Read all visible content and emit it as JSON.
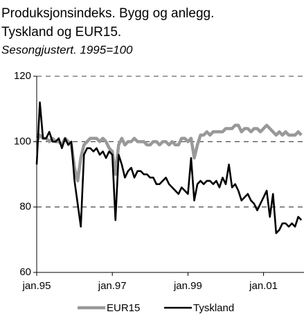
{
  "chart_data": {
    "type": "line",
    "title": [
      "Produksjonsindeks. Bygg og anlegg.",
      "Tyskland og EUR15."
    ],
    "subtitle": "Sesongjustert. 1995=100",
    "categories": [
      "jan.95",
      null,
      null,
      null,
      null,
      null,
      null,
      null,
      null,
      null,
      null,
      null,
      null,
      null,
      null,
      null,
      null,
      null,
      null,
      null,
      null,
      null,
      null,
      null,
      "jan.97",
      null,
      null,
      null,
      null,
      null,
      null,
      null,
      null,
      null,
      null,
      null,
      null,
      null,
      null,
      null,
      null,
      null,
      null,
      null,
      null,
      null,
      null,
      null,
      "jan.99",
      null,
      null,
      null,
      null,
      null,
      null,
      null,
      null,
      null,
      null,
      null,
      null,
      null,
      null,
      null,
      null,
      null,
      null,
      null,
      null,
      null,
      null,
      null,
      "jan.01",
      null,
      null,
      null,
      null,
      null,
      null,
      null,
      null,
      null,
      null,
      null,
      null
    ],
    "series": [
      {
        "name": "EUR15",
        "color": "#999999",
        "values": [
          100,
          102,
          101,
          101,
          100,
          101,
          100,
          100,
          99,
          101,
          100,
          99,
          92,
          88,
          95,
          99,
          100,
          101,
          101,
          101,
          100,
          101,
          100,
          98,
          97,
          90,
          99,
          101,
          99,
          100,
          100,
          101,
          100,
          100,
          100,
          99,
          99,
          100,
          100,
          99,
          100,
          100,
          99,
          100,
          99,
          99,
          101,
          101,
          100,
          101,
          95,
          99,
          102,
          102,
          103,
          102,
          103,
          103,
          103,
          103,
          104,
          104,
          104,
          105,
          105,
          103,
          104,
          104,
          103,
          104,
          104,
          103,
          104,
          105,
          104,
          103,
          102,
          103,
          102,
          103,
          102,
          102,
          102,
          103,
          102
        ]
      },
      {
        "name": "Tyskland",
        "color": "#000000",
        "values": [
          93,
          112,
          101,
          101,
          103,
          100,
          100,
          101,
          98,
          101,
          99,
          100,
          88,
          81,
          74,
          96,
          98,
          98,
          97,
          98,
          96,
          97,
          95,
          97,
          96,
          76,
          96,
          93,
          89,
          91,
          92,
          89,
          91,
          91,
          90,
          90,
          89,
          89,
          87,
          87,
          88,
          89,
          87,
          86,
          85,
          84,
          86,
          85,
          84,
          95,
          82,
          87,
          88,
          87,
          88,
          88,
          87,
          88,
          86,
          89,
          87,
          93,
          86,
          87,
          85,
          82,
          83,
          84,
          82,
          81,
          79,
          81,
          83,
          85,
          77,
          84,
          72,
          73,
          75,
          75,
          74,
          75,
          74,
          77,
          76
        ]
      }
    ],
    "ylim": [
      60,
      120
    ],
    "yticks": [
      60,
      80,
      100,
      120
    ],
    "grid": true
  }
}
